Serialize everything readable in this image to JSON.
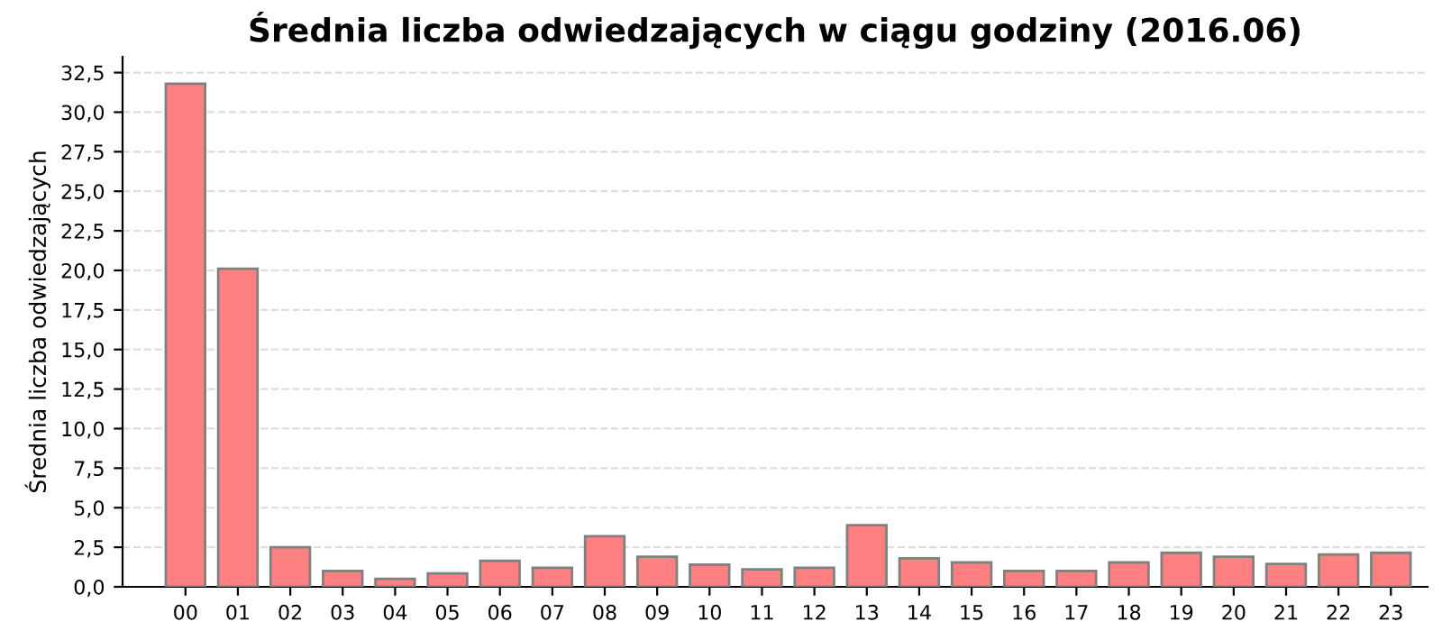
{
  "chart_data": {
    "type": "bar",
    "title": "Średnia liczba odwiedzających w ciągu godziny (2016.06)",
    "ylabel": "Średnia liczba odwiedzających",
    "categories": [
      "00",
      "01",
      "02",
      "03",
      "04",
      "05",
      "06",
      "07",
      "08",
      "09",
      "10",
      "11",
      "12",
      "13",
      "14",
      "15",
      "16",
      "17",
      "18",
      "19",
      "20",
      "21",
      "22",
      "23"
    ],
    "values": [
      31.8,
      20.1,
      2.5,
      1.0,
      0.5,
      0.85,
      1.65,
      1.2,
      3.2,
      1.9,
      1.4,
      1.1,
      1.2,
      3.9,
      1.8,
      1.55,
      1.0,
      1.0,
      1.55,
      2.15,
      1.9,
      1.45,
      2.05,
      2.15
    ],
    "color": "#ff8080",
    "ylim": [
      0,
      33.5
    ],
    "yticks": [
      {
        "value": 0,
        "label": "0,0"
      },
      {
        "value": 2.5,
        "label": "2,5"
      },
      {
        "value": 5,
        "label": "5,0"
      },
      {
        "value": 7.5,
        "label": "7,5"
      },
      {
        "value": 10,
        "label": "10,0"
      },
      {
        "value": 12.5,
        "label": "12,5"
      },
      {
        "value": 15,
        "label": "15,0"
      },
      {
        "value": 17.5,
        "label": "17,5"
      },
      {
        "value": 20,
        "label": "20,0"
      },
      {
        "value": 22.5,
        "label": "22,5"
      },
      {
        "value": 25,
        "label": "25,0"
      },
      {
        "value": 27.5,
        "label": "27,5"
      },
      {
        "value": 30,
        "label": "30,0"
      },
      {
        "value": 32.5,
        "label": "32,5"
      }
    ],
    "grid": "y"
  }
}
